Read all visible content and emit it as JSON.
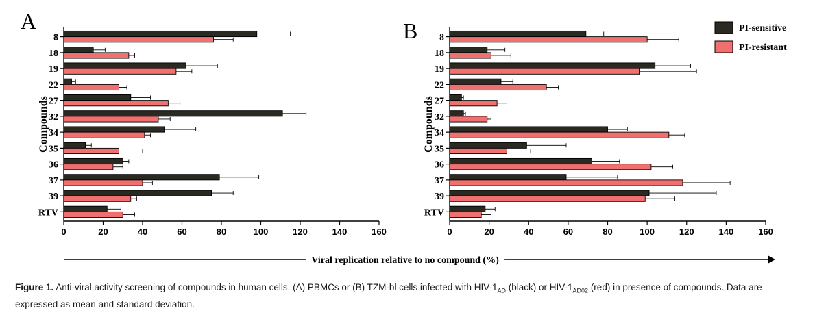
{
  "chart_data": [
    {
      "panel_label": "A",
      "type": "bar",
      "orientation": "horizontal",
      "categories": [
        "8",
        "18",
        "19",
        "22",
        "27",
        "32",
        "34",
        "35",
        "36",
        "37",
        "39",
        "RTV"
      ],
      "series": [
        {
          "name": "PI-sensitive",
          "color": "#2b2a22",
          "values": [
            98,
            15,
            62,
            4,
            34,
            111,
            51,
            11,
            30,
            79,
            75,
            22
          ],
          "errors": [
            17,
            6,
            16,
            2,
            10,
            12,
            16,
            3,
            3,
            20,
            11,
            7
          ]
        },
        {
          "name": "PI-resistant",
          "color": "#f07070",
          "values": [
            76,
            33,
            57,
            28,
            53,
            48,
            41,
            28,
            25,
            40,
            34,
            30
          ],
          "errors": [
            10,
            3,
            8,
            4,
            6,
            6,
            3,
            12,
            5,
            5,
            3,
            6
          ]
        }
      ],
      "xlim": [
        0,
        160
      ],
      "xticks": [
        0,
        20,
        40,
        60,
        80,
        100,
        120,
        140,
        160
      ],
      "ylabel": "Compounds"
    },
    {
      "panel_label": "B",
      "type": "bar",
      "orientation": "horizontal",
      "categories": [
        "8",
        "18",
        "19",
        "22",
        "27",
        "32",
        "34",
        "35",
        "36",
        "37",
        "39",
        "RTV"
      ],
      "series": [
        {
          "name": "PI-sensitive",
          "color": "#2b2a22",
          "values": [
            69,
            19,
            104,
            26,
            6,
            7,
            80,
            39,
            72,
            59,
            101,
            18
          ],
          "errors": [
            9,
            9,
            18,
            6,
            1,
            1,
            10,
            20,
            14,
            26,
            34,
            5
          ]
        },
        {
          "name": "PI-resistant",
          "color": "#f07070",
          "values": [
            100,
            21,
            96,
            49,
            24,
            19,
            111,
            29,
            102,
            118,
            99,
            16
          ],
          "errors": [
            16,
            10,
            29,
            6,
            5,
            2,
            8,
            12,
            11,
            24,
            15,
            5
          ]
        }
      ],
      "xlim": [
        0,
        160
      ],
      "xticks": [
        0,
        20,
        40,
        60,
        80,
        100,
        120,
        140,
        160
      ],
      "ylabel": "Compounds"
    }
  ],
  "legend": {
    "placement": "top-right",
    "items": [
      {
        "label": "PI-sensitive",
        "color": "#2b2a22"
      },
      {
        "label": "PI-resistant",
        "color": "#f07070"
      }
    ]
  },
  "shared_xlabel": "Viral replication relative to no compound (%)",
  "caption": {
    "figure_label": "Figure 1.",
    "text_1": " Anti-viral activity screening of compounds in human cells. (A) PBMCs or (B) TZM-bl cells infected with HIV-1",
    "sub_1": "AD",
    "text_2": " (black) or HIV-1",
    "sub_2": "AD02",
    "text_3": " (red) in presence of compounds. Data are expressed as mean and standard deviation."
  }
}
